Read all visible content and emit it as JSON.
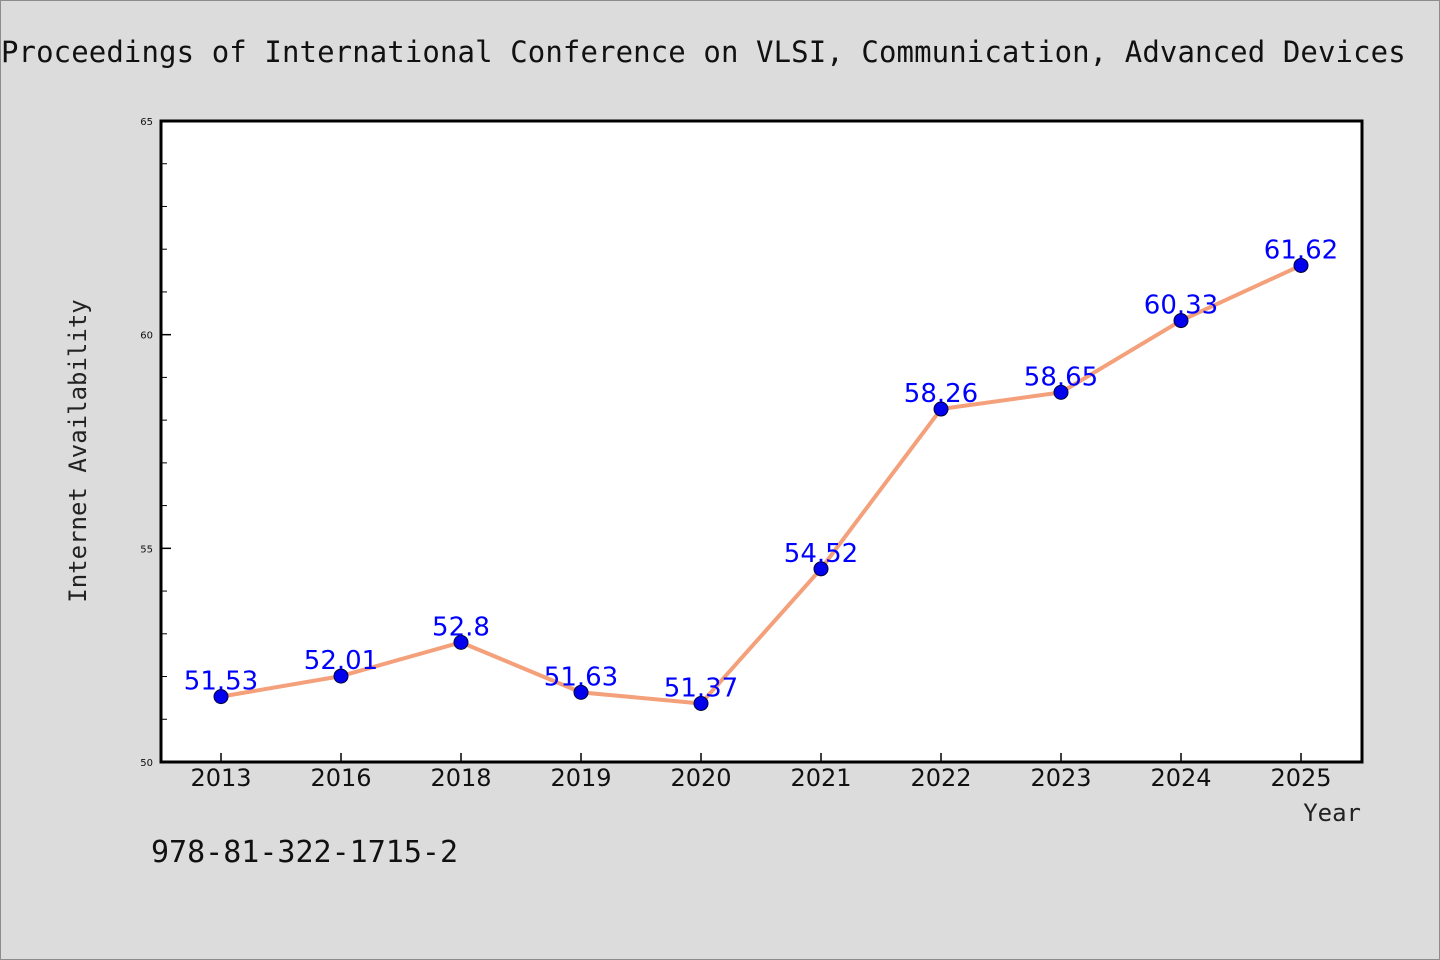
{
  "header": {
    "title": "Proceedings of International Conference on VLSI, Communication, Advanced Devices"
  },
  "footer": {
    "isbn": "978-81-322-1715-2"
  },
  "chart_data": {
    "type": "line",
    "title": "",
    "xlabel": "Year",
    "ylabel": "Internet Availability",
    "categories": [
      "2013",
      "2016",
      "2018",
      "2019",
      "2020",
      "2021",
      "2022",
      "2023",
      "2024",
      "2025"
    ],
    "series": [
      {
        "values": [
          51.53,
          52.01,
          52.8,
          51.63,
          51.37,
          54.52,
          58.26,
          58.65,
          60.33,
          61.62
        ],
        "labels": [
          "51.53",
          "52.01",
          "52.8",
          "51.63",
          "51.37",
          "54.52",
          "58.26",
          "58.65",
          "60.33",
          "61.62"
        ],
        "line_color": "#f4a07a",
        "marker_color": "#0000ee"
      }
    ],
    "ylim": [
      50,
      65
    ],
    "yticks": [
      "50",
      "55",
      "60",
      "65"
    ],
    "ytick_values": [
      50,
      55,
      60,
      65
    ],
    "grid": false,
    "legend": "none",
    "data_label_color": "#0000ff"
  }
}
